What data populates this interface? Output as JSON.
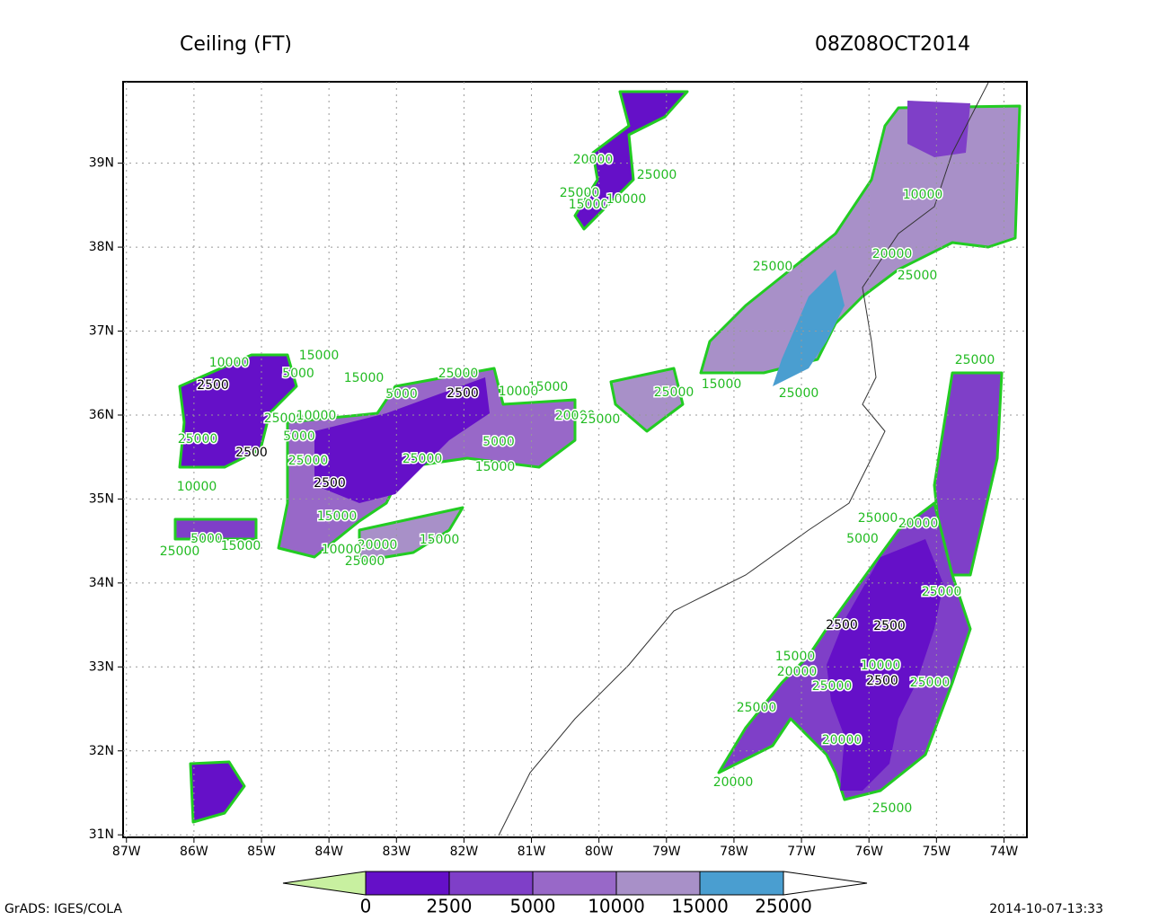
{
  "header": {
    "title": "Ceiling (FT)",
    "time": "08Z08OCT2014"
  },
  "map": {
    "xlim": [
      -87.05,
      -73.66
    ],
    "ylim": [
      30.97,
      39.97
    ],
    "xticks": [
      {
        "value": -87,
        "label": "87W"
      },
      {
        "value": -86,
        "label": "86W"
      },
      {
        "value": -85,
        "label": "85W"
      },
      {
        "value": -84,
        "label": "84W"
      },
      {
        "value": -83,
        "label": "83W"
      },
      {
        "value": -82,
        "label": "82W"
      },
      {
        "value": -81,
        "label": "81W"
      },
      {
        "value": -80,
        "label": "80W"
      },
      {
        "value": -79,
        "label": "79W"
      },
      {
        "value": -78,
        "label": "78W"
      },
      {
        "value": -77,
        "label": "77W"
      },
      {
        "value": -76,
        "label": "76W"
      },
      {
        "value": -75,
        "label": "75W"
      },
      {
        "value": -74,
        "label": "74W"
      }
    ],
    "yticks": [
      {
        "value": 31,
        "label": "31N"
      },
      {
        "value": 32,
        "label": "32N"
      },
      {
        "value": 33,
        "label": "33N"
      },
      {
        "value": 34,
        "label": "34N"
      },
      {
        "value": 35,
        "label": "35N"
      },
      {
        "value": 36,
        "label": "36N"
      },
      {
        "value": 37,
        "label": "37N"
      },
      {
        "value": 38,
        "label": "38N"
      },
      {
        "value": 39,
        "label": "39N"
      }
    ],
    "grid": true,
    "contour_labels": [
      "20000",
      "25000",
      "25000",
      "15000",
      "10000",
      "10000",
      "20000",
      "25000",
      "25000",
      "25000",
      "15000",
      "10000",
      "5000",
      "2500",
      "15000",
      "5000",
      "25000",
      "2500",
      "15000",
      "10000",
      "25000",
      "15000",
      "25000",
      "25000",
      "10000",
      "20000",
      "25000",
      "5000",
      "25000",
      "5000",
      "2500",
      "25000",
      "25000",
      "15000",
      "10000",
      "2500",
      "15000",
      "25000",
      "20000",
      "5000",
      "5000",
      "15000",
      "25000",
      "15000",
      "20000",
      "25000",
      "10000",
      "25000",
      "2500",
      "2500",
      "15000",
      "20000",
      "10000",
      "25000",
      "2500",
      "25000",
      "25000",
      "20000",
      "20000",
      "25000"
    ]
  },
  "colorbar": {
    "levels": [
      0,
      2500,
      5000,
      10000,
      15000,
      25000
    ],
    "colors": [
      "#c8f0a0",
      "#6510c8",
      "#7f3fc8",
      "#9868c8",
      "#a890c8",
      "#4a9ed0",
      "#ffffff"
    ]
  },
  "footer": {
    "left": "GrADS: IGES/COLA",
    "right": "2014-10-07-13:33"
  }
}
